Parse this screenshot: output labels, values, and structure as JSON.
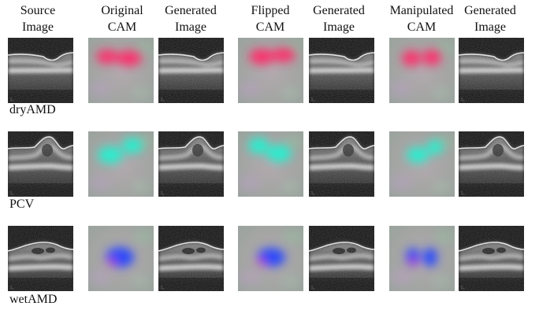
{
  "columns": [
    {
      "line1": "Source",
      "line2": "Image"
    },
    {
      "line1": "Original",
      "line2": "CAM"
    },
    {
      "line1": "Generated",
      "line2": "Image"
    },
    {
      "line1": "Flipped",
      "line2": "CAM"
    },
    {
      "line1": "Generated",
      "line2": "Image"
    },
    {
      "line1": "Manipulated",
      "line2": "CAM"
    },
    {
      "line1": "Generated",
      "line2": "Image"
    }
  ],
  "rows": [
    {
      "label": "dryAMD",
      "cam_color": "#ff2a6a"
    },
    {
      "label": "PCV",
      "cam_color": "#22f0d0"
    },
    {
      "label": "wetAMD",
      "cam_color": "#2244ff"
    }
  ]
}
